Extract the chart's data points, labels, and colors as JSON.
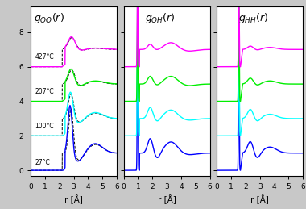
{
  "xlim": [
    0,
    6
  ],
  "ylim": [
    -0.3,
    9.5
  ],
  "yticks": [
    0,
    2,
    4,
    6,
    8
  ],
  "xticks": [
    0,
    1,
    2,
    3,
    4,
    5,
    6
  ],
  "colors": [
    "blue",
    "cyan",
    "#00ee00",
    "magenta"
  ],
  "temps": [
    "27°C",
    "100°C",
    "207°C",
    "427°C"
  ],
  "offsets": [
    0,
    2,
    4,
    6
  ],
  "xlabel": "r [Å]",
  "bg_color": "#d8d8d8",
  "panel_color": "white"
}
